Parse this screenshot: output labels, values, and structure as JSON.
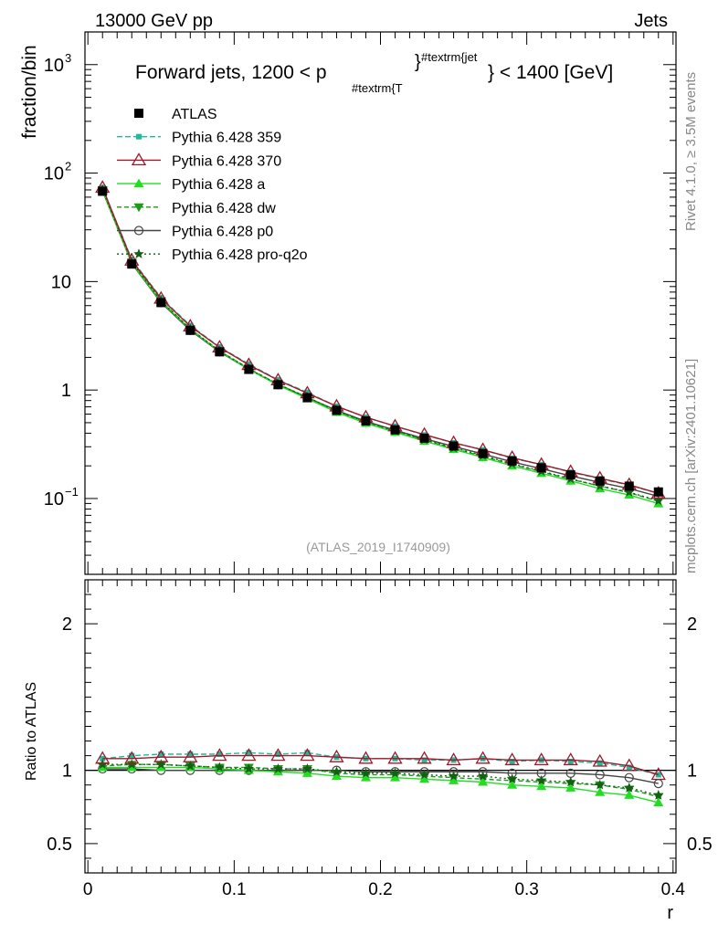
{
  "chart_data": {
    "type": "line",
    "header": {
      "left": "13000 GeV pp",
      "right": "Jets"
    },
    "title_main": "Forward jets, 1200 < p",
    "title_sub": "#textrm{T",
    "title_sup": "#textrm{jet",
    "title_end": "} < 1400 [GeV]",
    "side_label_top": "Rivet 4.1.0, ≥ 3.5M events",
    "side_label_bottom": "mcplots.cern.ch [arXiv:2401.10621]",
    "analysis_id": "(ATLAS_2019_I1740909)",
    "ylabel": "fraction/bin",
    "ylabel_ratio": "Ratio to ATLAS",
    "xlabel": "r",
    "xlim": [
      -0.002,
      0.402
    ],
    "ylim_log": [
      0.02,
      2000
    ],
    "ylim_ratio": [
      0.3,
      2.3
    ],
    "x_ticks": [
      {
        "value": 0.0,
        "label": "0"
      },
      {
        "value": 0.1,
        "label": "0.1"
      },
      {
        "value": 0.2,
        "label": "0.2"
      },
      {
        "value": 0.3,
        "label": "0.3"
      },
      {
        "value": 0.4,
        "label": "0.4"
      }
    ],
    "y_ticks_top": [
      {
        "value": 0.1,
        "base": "10",
        "exp": "−1"
      },
      {
        "value": 1,
        "base": "1",
        "exp": ""
      },
      {
        "value": 10,
        "base": "10",
        "exp": ""
      },
      {
        "value": 100,
        "base": "10",
        "exp": "2"
      },
      {
        "value": 1000,
        "base": "10",
        "exp": "3"
      }
    ],
    "y_ticks_ratio": [
      {
        "value": 0.5,
        "label": "0.5"
      },
      {
        "value": 1,
        "label": "1"
      },
      {
        "value": 2,
        "label": "2"
      }
    ],
    "x": [
      0.01,
      0.03,
      0.05,
      0.07,
      0.09,
      0.11,
      0.13,
      0.15,
      0.17,
      0.19,
      0.21,
      0.23,
      0.25,
      0.27,
      0.29,
      0.31,
      0.33,
      0.35,
      0.37,
      0.39
    ],
    "data": {
      "name": "ATLAS",
      "values": [
        68,
        14.5,
        6.4,
        3.55,
        2.25,
        1.55,
        1.12,
        0.85,
        0.65,
        0.52,
        0.43,
        0.36,
        0.305,
        0.26,
        0.222,
        0.192,
        0.165,
        0.145,
        0.13,
        0.115
      ]
    },
    "series": [
      {
        "name": "Pythia 6.428 359",
        "color": "#1abc9c",
        "dash": "6,3",
        "marker": "square-small",
        "ratio": [
          1.08,
          1.1,
          1.11,
          1.11,
          1.11,
          1.12,
          1.11,
          1.12,
          1.09,
          1.08,
          1.08,
          1.07,
          1.07,
          1.08,
          1.06,
          1.07,
          1.06,
          1.05,
          1.02,
          0.97
        ]
      },
      {
        "name": "Pythia 6.428 370",
        "color": "#a0182b",
        "dash": "",
        "marker": "triangle-open",
        "ratio": [
          1.08,
          1.08,
          1.09,
          1.09,
          1.1,
          1.1,
          1.1,
          1.1,
          1.09,
          1.08,
          1.08,
          1.08,
          1.07,
          1.08,
          1.07,
          1.07,
          1.07,
          1.06,
          1.03,
          0.97
        ]
      },
      {
        "name": "Pythia 6.428 a",
        "color": "#22dd22",
        "dash": "",
        "marker": "triangle-filled",
        "ratio": [
          1.02,
          1.02,
          1.02,
          1.02,
          1.01,
          1.0,
          0.99,
          0.98,
          0.96,
          0.95,
          0.95,
          0.94,
          0.93,
          0.92,
          0.9,
          0.89,
          0.88,
          0.85,
          0.83,
          0.78
        ]
      },
      {
        "name": "Pythia 6.428 dw",
        "color": "#1a9b1a",
        "dash": "5,3",
        "marker": "triangle-down-filled",
        "ratio": [
          1.03,
          1.04,
          1.04,
          1.03,
          1.02,
          1.02,
          1.01,
          1.01,
          0.98,
          0.97,
          0.97,
          0.96,
          0.95,
          0.94,
          0.93,
          0.92,
          0.91,
          0.9,
          0.87,
          0.82
        ]
      },
      {
        "name": "Pythia 6.428 p0",
        "color": "#444444",
        "dash": "",
        "marker": "circle-open",
        "ratio": [
          1.01,
          1.01,
          1.0,
          1.0,
          1.0,
          1.0,
          1.0,
          1.0,
          1.0,
          0.99,
          0.99,
          0.99,
          0.99,
          0.99,
          0.98,
          0.98,
          0.98,
          0.97,
          0.95,
          0.91
        ]
      },
      {
        "name": "Pythia 6.428 pro-q2o",
        "color": "#155e15",
        "dash": "2,3",
        "marker": "star",
        "ratio": [
          1.04,
          1.04,
          1.04,
          1.03,
          1.02,
          1.01,
          1.01,
          1.01,
          0.99,
          0.98,
          0.98,
          0.97,
          0.96,
          0.96,
          0.94,
          0.93,
          0.92,
          0.9,
          0.88,
          0.83
        ]
      }
    ]
  }
}
